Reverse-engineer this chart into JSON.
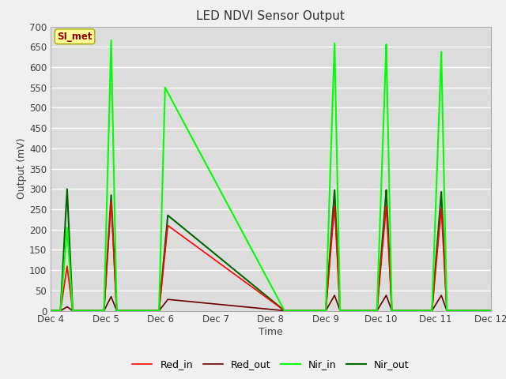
{
  "title": "LED NDVI Sensor Output",
  "xlabel": "Time",
  "ylabel": "Output (mV)",
  "ylim": [
    0,
    700
  ],
  "xlim_days": [
    4,
    12
  ],
  "background_color": "#dcdcdc",
  "grid_color": "#ffffff",
  "fig_bg": "#f0f0f0",
  "annotation_text": "SI_met",
  "annotation_bg": "#ffff99",
  "annotation_border": "#aaaa00",
  "annotation_text_color": "#990000",
  "series": {
    "Red_in": {
      "color": "#ff0000",
      "lw": 1.2
    },
    "Red_out": {
      "color": "#660000",
      "lw": 1.2
    },
    "Nir_in": {
      "color": "#00ff00",
      "lw": 1.5
    },
    "Nir_out": {
      "color": "#006600",
      "lw": 1.5
    }
  },
  "events": [
    {
      "day_start": 4.18,
      "day_peak": 4.3,
      "day_end": 4.4,
      "Red_in_peak": 110,
      "Red_out_peak": 10,
      "Nir_in_peak": 205,
      "Nir_out_peak": 300
    },
    {
      "day_start": 4.97,
      "day_peak": 5.1,
      "day_end": 5.2,
      "Red_in_peak": 270,
      "Red_out_peak": 35,
      "Nir_in_peak": 667,
      "Nir_out_peak": 285
    },
    {
      "day_start": 5.97,
      "day_peak_nir": 6.08,
      "day_peak_red": 6.13,
      "day_end_red": 6.22,
      "day_end_nir": 8.25,
      "Red_in_peak": 210,
      "Red_out_peak": 28,
      "Nir_in_peak": 550,
      "Nir_out_peak": 235,
      "long_decay": true
    },
    {
      "day_start": 9.0,
      "day_peak": 9.16,
      "day_end": 9.26,
      "Red_in_peak": 258,
      "Red_out_peak": 38,
      "Nir_in_peak": 660,
      "Nir_out_peak": 298
    },
    {
      "day_start": 9.93,
      "day_peak": 10.1,
      "day_end": 10.2,
      "Red_in_peak": 258,
      "Red_out_peak": 38,
      "Nir_in_peak": 657,
      "Nir_out_peak": 298
    },
    {
      "day_start": 10.93,
      "day_peak": 11.1,
      "day_end": 11.2,
      "Red_in_peak": 252,
      "Red_out_peak": 38,
      "Nir_in_peak": 638,
      "Nir_out_peak": 293
    }
  ]
}
